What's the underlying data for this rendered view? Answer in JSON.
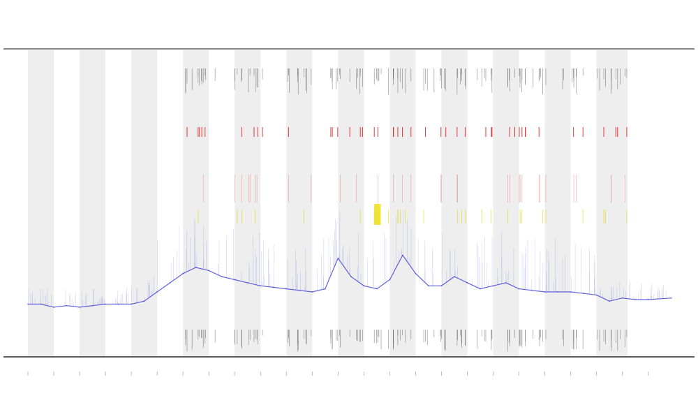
{
  "chart_data": {
    "type": "line",
    "title": "",
    "xlabel": "",
    "ylabel": "",
    "xlim": [
      0,
      24.9
    ],
    "ylim": [
      0,
      100
    ],
    "grid": false,
    "legend": "none",
    "shaded_bands": [
      [
        0,
        1
      ],
      [
        2,
        3
      ],
      [
        4,
        5
      ],
      [
        6,
        7
      ],
      [
        8,
        9
      ],
      [
        10,
        11
      ],
      [
        12,
        13
      ],
      [
        14,
        15
      ],
      [
        16,
        17
      ],
      [
        18,
        19
      ],
      [
        20,
        21
      ],
      [
        22,
        23.2
      ]
    ],
    "series": [
      {
        "color": "#3b3bd6",
        "x": [
          0,
          0.5,
          1,
          1.5,
          2,
          2.5,
          3,
          3.5,
          4,
          4.5,
          5,
          5.5,
          6,
          6.5,
          7,
          7.5,
          8,
          8.5,
          9,
          9.5,
          10,
          10.5,
          11,
          11.5,
          12,
          12.5,
          13,
          13.5,
          14,
          14.5,
          15,
          15.5,
          16,
          16.5,
          17,
          17.5,
          18,
          18.5,
          19,
          19.5,
          20,
          20.5,
          21,
          21.5,
          22,
          22.5,
          23,
          23.5,
          24,
          24.9
        ],
        "y": [
          17,
          17,
          16,
          16.5,
          16,
          16.5,
          17,
          17,
          17,
          18,
          21,
          24,
          27,
          29,
          28,
          26,
          25,
          24,
          23,
          22.5,
          22,
          21.5,
          21,
          22,
          32,
          26,
          23,
          22,
          25,
          33,
          27,
          23,
          23,
          26,
          24,
          22,
          23,
          24,
          22,
          21.5,
          21,
          21,
          21,
          20.5,
          20,
          18,
          19,
          18.5,
          18.5,
          19
        ]
      }
    ],
    "annotations": {
      "red_marker_band_y": [
        78,
        55
      ],
      "yellow_marker_band_y": [
        44,
        48
      ],
      "black_rug_band_top_y": [
        92,
        98
      ],
      "black_rug_band_bottom_y": [
        2,
        9
      ]
    }
  }
}
